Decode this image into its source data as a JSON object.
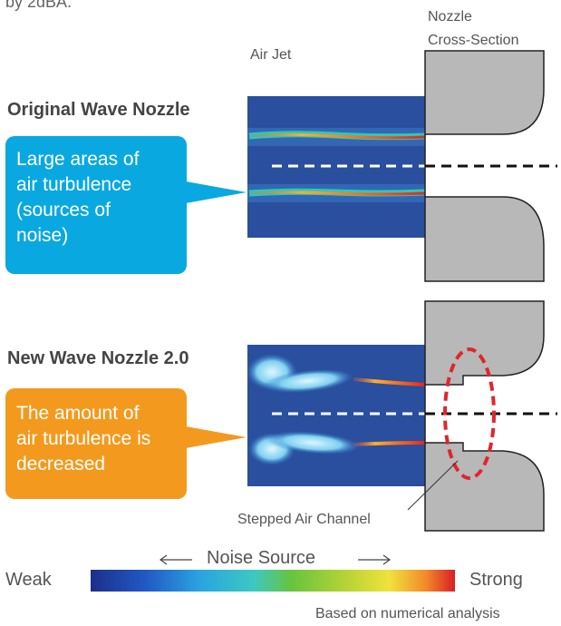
{
  "intro_fragment": "by 2dBA.",
  "labels": {
    "nozzle_cross_section_line1": "Nozzle",
    "nozzle_cross_section_line2": "Cross-Section",
    "air_jet": "Air Jet",
    "stepped_air_channel": "Stepped Air Channel",
    "noise_source": "Noise Source",
    "weak": "Weak",
    "strong": "Strong",
    "footnote": "Based on numerical analysis"
  },
  "original": {
    "title": "Original Wave Nozzle",
    "callout_lines": [
      "Large areas of",
      "air turbulence",
      "(sources of",
      "noise)"
    ],
    "callout_color": "#0aa8e0"
  },
  "new": {
    "title": "New Wave Nozzle 2.0",
    "callout_lines": [
      "The amount of",
      "air turbulence is",
      "decreased"
    ],
    "callout_color": "#f39a1e"
  },
  "colors": {
    "nozzle_fill": "#b8b8b8",
    "jet_background": "#2a4f9e",
    "dashed_marker": "#e0262b"
  }
}
